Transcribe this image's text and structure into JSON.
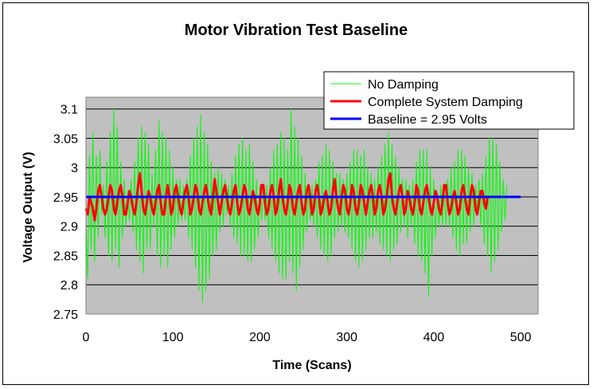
{
  "chart_data": {
    "type": "line",
    "title": "Motor Vibration Test Baseline",
    "xlabel": "Time (Scans)",
    "ylabel": "Voltage Output (V)",
    "xlim": [
      0,
      520
    ],
    "ylim": [
      2.75,
      3.12
    ],
    "x_ticks": [
      "0",
      "100",
      "200",
      "300",
      "400",
      "500"
    ],
    "y_ticks": [
      "2.75",
      "2.8",
      "2.85",
      "2.9",
      "2.95",
      "3",
      "3.05",
      "3.1"
    ],
    "grid": "horizontal",
    "legend_position": "top-right",
    "series": [
      {
        "name": "No Damping",
        "color": "#00ff00",
        "x_start": 0,
        "x_step": 2,
        "values": [
          2.91,
          2.81,
          3.02,
          2.86,
          3.06,
          2.84,
          3.02,
          2.88,
          3.03,
          2.92,
          2.97,
          2.88,
          3.01,
          2.85,
          3.06,
          2.84,
          3.1,
          2.86,
          3.07,
          2.83,
          3.01,
          2.88,
          2.98,
          2.9,
          2.96,
          2.91,
          2.98,
          2.89,
          3.01,
          2.86,
          3.05,
          2.84,
          3.07,
          2.82,
          3.06,
          2.86,
          3.04,
          2.86,
          2.99,
          2.9,
          3.03,
          2.85,
          3.08,
          2.83,
          3.06,
          2.85,
          3.05,
          2.83,
          3.03,
          2.86,
          3.0,
          2.88,
          2.98,
          2.9,
          2.98,
          2.91,
          2.97,
          2.91,
          2.98,
          2.88,
          3.02,
          2.86,
          3.05,
          2.83,
          3.07,
          2.79,
          3.09,
          2.77,
          3.06,
          2.79,
          3.04,
          2.81,
          3.01,
          2.85,
          2.99,
          2.86,
          3.0,
          2.89,
          2.99,
          2.9,
          2.98,
          2.92,
          2.97,
          2.9,
          2.99,
          2.88,
          3.02,
          2.87,
          3.04,
          2.85,
          3.05,
          2.85,
          3.03,
          2.84,
          3.04,
          2.84,
          3.01,
          2.86,
          2.98,
          2.88,
          2.97,
          2.91,
          2.97,
          2.91,
          2.97,
          2.88,
          3.0,
          2.86,
          3.03,
          2.84,
          3.04,
          2.82,
          3.06,
          2.81,
          3.05,
          2.81,
          3.03,
          2.84,
          3.1,
          2.82,
          3.07,
          2.79,
          3.05,
          2.83,
          3.02,
          2.86,
          2.99,
          2.89,
          2.97,
          2.91,
          2.97,
          2.9,
          2.98,
          2.88,
          3.01,
          2.86,
          3.02,
          2.85,
          3.04,
          2.84,
          3.03,
          2.85,
          3.01,
          2.88,
          2.99,
          2.89,
          2.99,
          2.9,
          2.98,
          2.89,
          2.99,
          2.88,
          3.01,
          2.86,
          3.03,
          2.84,
          3.03,
          2.83,
          3.02,
          2.84,
          3.03,
          2.86,
          3.0,
          2.88,
          2.99,
          2.88,
          2.98,
          2.89,
          3.0,
          2.87,
          3.02,
          2.86,
          3.04,
          2.85,
          3.06,
          2.84,
          3.04,
          2.86,
          3.02,
          2.87,
          3.0,
          2.89,
          2.98,
          2.9,
          2.98,
          2.88,
          2.97,
          2.9,
          2.98,
          2.87,
          3.01,
          2.85,
          3.03,
          2.84,
          3.03,
          2.82,
          3.03,
          2.78,
          3.0,
          2.85,
          2.98,
          2.88,
          2.96,
          2.9,
          2.97,
          2.9,
          2.97,
          2.9,
          2.98,
          2.9,
          3.0,
          2.88,
          3.01,
          2.86,
          3.03,
          2.85,
          3.03,
          2.87,
          3.02,
          2.87,
          3.0,
          2.89,
          2.99,
          2.9,
          2.97,
          2.92,
          2.98,
          2.9,
          2.99,
          2.87,
          3.02,
          2.85,
          3.05,
          2.82,
          3.05,
          2.84,
          3.04,
          2.86,
          3.01,
          2.89,
          2.98,
          2.91,
          2.97
        ]
      },
      {
        "name": "Complete System Damping",
        "color": "#ff0000",
        "x_start": 0,
        "x_step": 2,
        "values": [
          2.93,
          2.92,
          2.95,
          2.94,
          2.93,
          2.91,
          2.93,
          2.96,
          2.97,
          2.95,
          2.93,
          2.92,
          2.93,
          2.95,
          2.97,
          2.96,
          2.93,
          2.92,
          2.94,
          2.96,
          2.97,
          2.95,
          2.92,
          2.92,
          2.94,
          2.96,
          2.95,
          2.93,
          2.92,
          2.94,
          2.97,
          2.99,
          2.96,
          2.93,
          2.92,
          2.94,
          2.96,
          2.95,
          2.93,
          2.92,
          2.94,
          2.96,
          2.97,
          2.94,
          2.92,
          2.92,
          2.95,
          2.97,
          2.95,
          2.92,
          2.93,
          2.96,
          2.97,
          2.95,
          2.93,
          2.92,
          2.94,
          2.96,
          2.97,
          2.95,
          2.92,
          2.93,
          2.95,
          2.97,
          2.96,
          2.93,
          2.92,
          2.94,
          2.96,
          2.97,
          2.95,
          2.93,
          2.92,
          2.95,
          2.98,
          2.96,
          2.94,
          2.92,
          2.94,
          2.96,
          2.97,
          2.95,
          2.93,
          2.92,
          2.94,
          2.96,
          2.97,
          2.94,
          2.92,
          2.93,
          2.95,
          2.97,
          2.96,
          2.93,
          2.92,
          2.94,
          2.96,
          2.95,
          2.93,
          2.92,
          2.94,
          2.97,
          2.97,
          2.94,
          2.92,
          2.93,
          2.96,
          2.97,
          2.95,
          2.92,
          2.93,
          2.96,
          2.98,
          2.95,
          2.93,
          2.92,
          2.94,
          2.97,
          2.96,
          2.93,
          2.92,
          2.94,
          2.96,
          2.97,
          2.94,
          2.92,
          2.93,
          2.96,
          2.97,
          2.95,
          2.92,
          2.93,
          2.96,
          2.97,
          2.95,
          2.92,
          2.93,
          2.95,
          2.96,
          2.94,
          2.92,
          2.93,
          2.96,
          2.98,
          2.95,
          2.93,
          2.92,
          2.95,
          2.97,
          2.96,
          2.93,
          2.92,
          2.94,
          2.97,
          2.96,
          2.93,
          2.92,
          2.94,
          2.97,
          2.96,
          2.94,
          2.92,
          2.94,
          2.96,
          2.97,
          2.95,
          2.92,
          2.93,
          2.96,
          2.97,
          2.95,
          2.92,
          2.93,
          2.95,
          2.98,
          2.99,
          2.95,
          2.93,
          2.92,
          2.94,
          2.96,
          2.97,
          2.95,
          2.92,
          2.93,
          2.96,
          2.95,
          2.93,
          2.92,
          2.94,
          2.97,
          2.96,
          2.93,
          2.92,
          2.94,
          2.96,
          2.97,
          2.95,
          2.93,
          2.92,
          2.94,
          2.96,
          2.95,
          2.93,
          2.92,
          2.94,
          2.97,
          2.97,
          2.94,
          2.92,
          2.93,
          2.95,
          2.96,
          2.94,
          2.92,
          2.93,
          2.96,
          2.97,
          2.95,
          2.93,
          2.92,
          2.95,
          2.97,
          2.96,
          2.93,
          2.92,
          2.94,
          2.96,
          2.96,
          2.94,
          2.93,
          2.95
        ]
      },
      {
        "name": "Baseline = 2.95 Volts",
        "color": "#0000ff",
        "x": [
          0,
          500
        ],
        "values": [
          2.95,
          2.95
        ]
      }
    ]
  }
}
